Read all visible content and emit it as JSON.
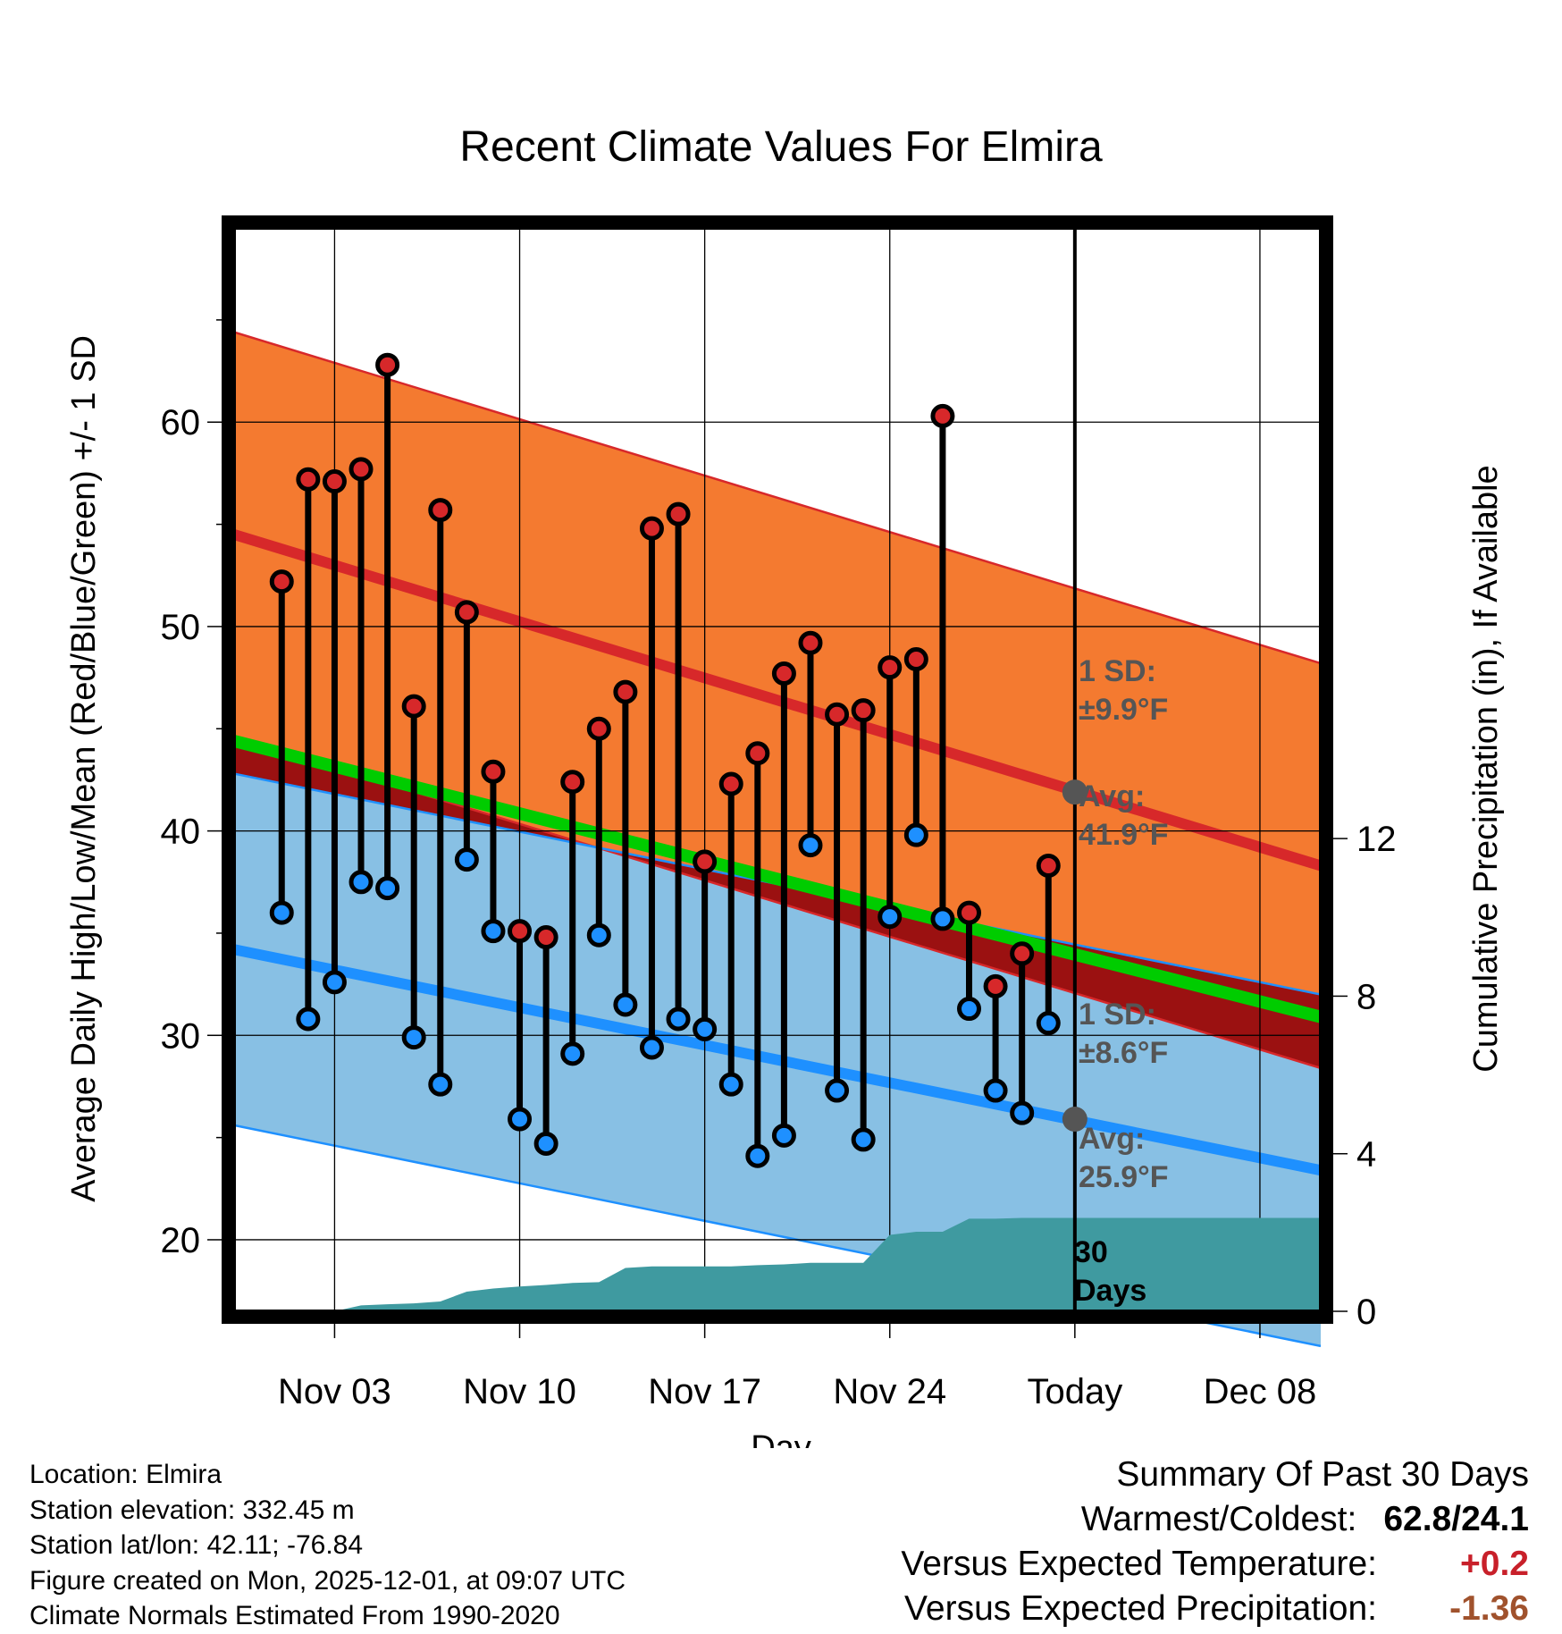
{
  "chart_data": {
    "type": "line",
    "title": "Recent Climate Values For Elmira",
    "xlabel": "Day",
    "ylabel_left": "Average Daily High/Low/Mean (Red/Blue/Green) +/- 1 SD",
    "ylabel_right": "Cumulative Precipitation (in), If Available",
    "ylim": [
      16.5,
      69.5
    ],
    "ylim_right": [
      0,
      27.5
    ],
    "xlim_days": [
      -0.8,
      40.3
    ],
    "x_ticks": [
      {
        "day": 3,
        "label": "Nov 03"
      },
      {
        "day": 10,
        "label": "Nov 10"
      },
      {
        "day": 17,
        "label": "Nov 17"
      },
      {
        "day": 24,
        "label": "Nov 24"
      },
      {
        "day": 31,
        "label": "Today"
      },
      {
        "day": 38,
        "label": "Dec 08"
      }
    ],
    "y_ticks": [
      20,
      30,
      40,
      50,
      60
    ],
    "y_ticks_right": [
      0,
      4,
      8,
      12
    ],
    "today_day": 31,
    "days": [
      1,
      2,
      3,
      4,
      5,
      6,
      7,
      8,
      9,
      10,
      11,
      12,
      13,
      14,
      15,
      16,
      17,
      18,
      19,
      20,
      21,
      22,
      23,
      24,
      25,
      26,
      27,
      28,
      29,
      30
    ],
    "highs": [
      52.2,
      57.2,
      57.1,
      57.7,
      62.8,
      46.1,
      55.7,
      50.7,
      42.9,
      35.1,
      34.8,
      42.4,
      45.0,
      46.8,
      54.8,
      55.5,
      38.5,
      42.3,
      43.8,
      47.7,
      49.2,
      45.7,
      45.9,
      48.0,
      48.4,
      60.3,
      36.0,
      32.4,
      34.0,
      38.3
    ],
    "lows": [
      36.0,
      30.8,
      32.6,
      37.5,
      37.2,
      29.9,
      27.6,
      38.6,
      35.1,
      25.9,
      24.7,
      29.1,
      34.9,
      31.5,
      29.4,
      30.8,
      30.3,
      27.6,
      24.1,
      25.1,
      39.3,
      27.3,
      24.9,
      35.8,
      39.8,
      35.7,
      31.3,
      27.3,
      26.2,
      30.6
    ],
    "normal_high_start": 54.5,
    "normal_high_end": 38.3,
    "normal_low_start": 34.2,
    "normal_low_end": 23.4,
    "normal_mean_start": 44.4,
    "normal_mean_end": 30.9,
    "sd_high": 9.9,
    "sd_low": 8.6,
    "today_avg_high": 41.9,
    "today_avg_low": 25.9,
    "precip_days": [
      0,
      1,
      2,
      3,
      4,
      5,
      6,
      7,
      8,
      9,
      10,
      11,
      12,
      13,
      14,
      15,
      16,
      17,
      18,
      19,
      20,
      21,
      22,
      23,
      24,
      25,
      26,
      27,
      28,
      29,
      30,
      31
    ],
    "precip_cum": [
      0,
      0,
      0,
      0,
      0.15,
      0.18,
      0.2,
      0.25,
      0.5,
      0.58,
      0.63,
      0.67,
      0.72,
      0.74,
      1.1,
      1.14,
      1.14,
      1.14,
      1.14,
      1.17,
      1.19,
      1.23,
      1.23,
      1.23,
      1.94,
      2.02,
      2.02,
      2.35,
      2.35,
      2.37,
      2.37,
      2.37
    ],
    "colors": {
      "high_band": "#f47a30",
      "high_line": "#d7282a",
      "low_band": "#88c0e4",
      "low_line": "#1e90ff",
      "mean_line": "#00cc00",
      "overlap": "#9b1111",
      "precip": "#3f9aa0",
      "high_marker": "#d7282a",
      "low_marker": "#1e90ff"
    }
  },
  "annotations": {
    "sd_high_line1": "1 SD:",
    "sd_high_line2": "±9.9°F",
    "avg_high_line1": "Avg:",
    "avg_high_line2": "41.9°F",
    "sd_low_line1": "1 SD:",
    "sd_low_line2": "±8.6°F",
    "avg_low_line1": "Avg:",
    "avg_low_line2": "25.9°F",
    "days_line1": "30",
    "days_line2": "Days"
  },
  "meta": {
    "location": "Location: Elmira",
    "elevation": "Station elevation: 332.45 m",
    "latlon": "Station lat/lon: 42.11; -76.84",
    "created": "Figure created on Mon, 2025-12-01, at 09:07 UTC",
    "normals": "Climate Normals Estimated From 1990-2020"
  },
  "summary": {
    "title": "Summary Of Past 30 Days",
    "warm_label": "Warmest/Coldest:",
    "warm_value": "62.8/24.1",
    "temp_label": "Versus Expected Temperature:",
    "temp_value": "+0.2",
    "temp_color": "#c8202a",
    "precip_label": "Versus Expected Precipitation:",
    "precip_value": "-1.36",
    "precip_color": "#a0522d"
  }
}
